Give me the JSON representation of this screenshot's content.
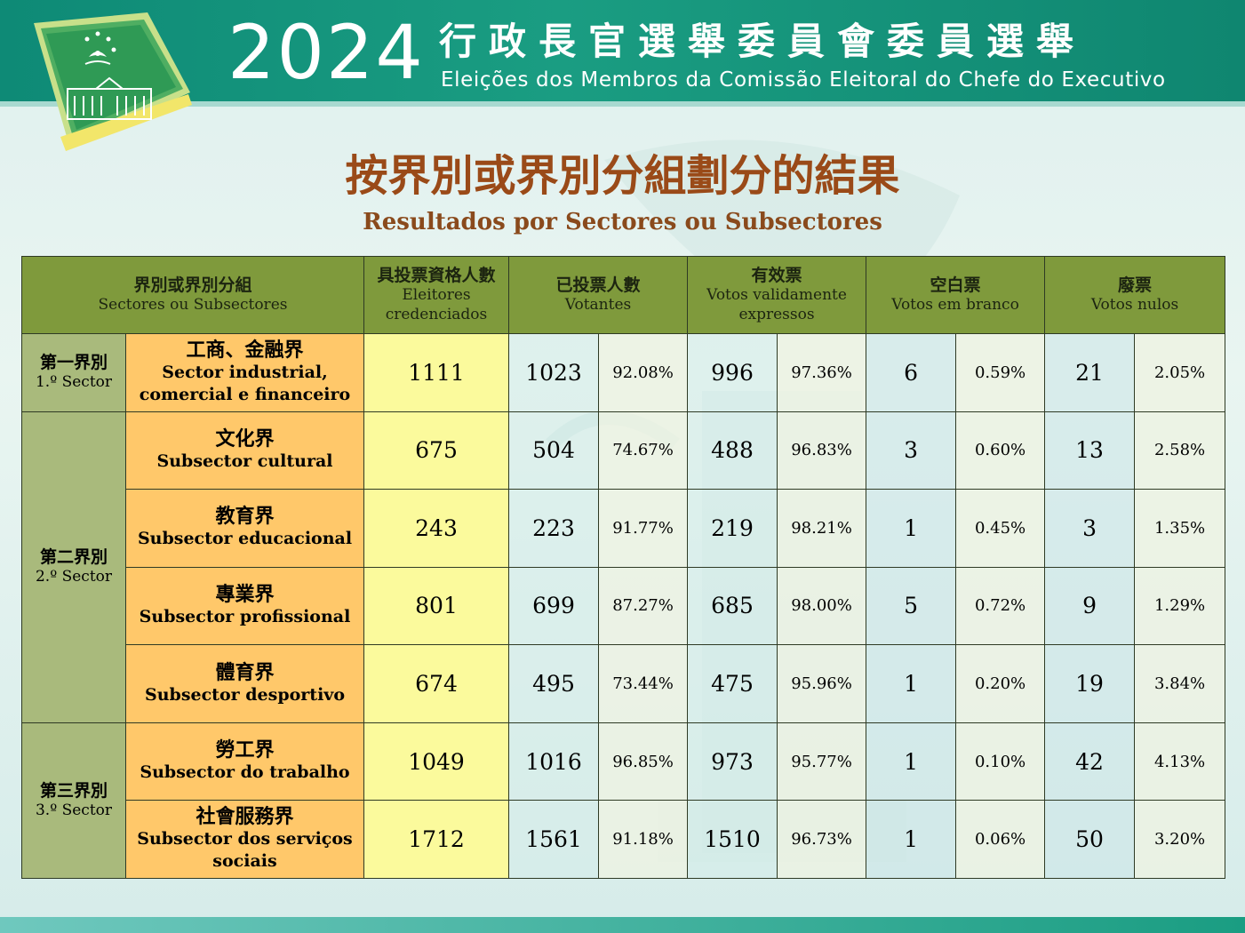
{
  "header": {
    "year": "2024",
    "title_zh": "行政長官選舉委員會委員選舉",
    "title_pt": "Eleições dos Membros da Comissão Eleitoral do Chefe do Executivo"
  },
  "page": {
    "title_zh": "按界別或界別分組劃分的結果",
    "title_pt": "Resultados por Sectores ou Subsectores"
  },
  "table": {
    "headers": {
      "sector": {
        "zh": "界別或界別分組",
        "pt": "Sectores ou Subsectores"
      },
      "eligible": {
        "zh": "具投票資格人數",
        "pt": "Eleitores credenciados"
      },
      "voters": {
        "zh": "已投票人數",
        "pt": "Votantes"
      },
      "valid": {
        "zh": "有效票",
        "pt": "Votos validamente expressos"
      },
      "blank": {
        "zh": "空白票",
        "pt": "Votos em branco"
      },
      "null": {
        "zh": "廢票",
        "pt": "Votos nulos"
      }
    },
    "sectors": [
      {
        "zh": "第一界別",
        "pt": "1.º Sector"
      },
      {
        "zh": "第二界別",
        "pt": "2.º Sector"
      },
      {
        "zh": "第三界別",
        "pt": "3.º Sector"
      }
    ],
    "rows": [
      {
        "zh": "工商、金融界",
        "pt": "Sector industrial, comercial e financeiro",
        "eligible": "1111",
        "voters": "1023",
        "voters_pct": "92.08%",
        "valid": "996",
        "valid_pct": "97.36%",
        "blank": "6",
        "blank_pct": "0.59%",
        "null": "21",
        "null_pct": "2.05%"
      },
      {
        "zh": "文化界",
        "pt": "Subsector cultural",
        "eligible": "675",
        "voters": "504",
        "voters_pct": "74.67%",
        "valid": "488",
        "valid_pct": "96.83%",
        "blank": "3",
        "blank_pct": "0.60%",
        "null": "13",
        "null_pct": "2.58%"
      },
      {
        "zh": "教育界",
        "pt": "Subsector educacional",
        "eligible": "243",
        "voters": "223",
        "voters_pct": "91.77%",
        "valid": "219",
        "valid_pct": "98.21%",
        "blank": "1",
        "blank_pct": "0.45%",
        "null": "3",
        "null_pct": "1.35%"
      },
      {
        "zh": "專業界",
        "pt": "Subsector profissional",
        "eligible": "801",
        "voters": "699",
        "voters_pct": "87.27%",
        "valid": "685",
        "valid_pct": "98.00%",
        "blank": "5",
        "blank_pct": "0.72%",
        "null": "9",
        "null_pct": "1.29%"
      },
      {
        "zh": "體育界",
        "pt": "Subsector desportivo",
        "eligible": "674",
        "voters": "495",
        "voters_pct": "73.44%",
        "valid": "475",
        "valid_pct": "95.96%",
        "blank": "1",
        "blank_pct": "0.20%",
        "null": "19",
        "null_pct": "3.84%"
      },
      {
        "zh": "勞工界",
        "pt": "Subsector do trabalho",
        "eligible": "1049",
        "voters": "1016",
        "voters_pct": "96.85%",
        "valid": "973",
        "valid_pct": "95.77%",
        "blank": "1",
        "blank_pct": "0.10%",
        "null": "42",
        "null_pct": "4.13%"
      },
      {
        "zh": "社會服務界",
        "pt": "Subsector dos serviços sociais",
        "eligible": "1712",
        "voters": "1561",
        "voters_pct": "91.18%",
        "valid": "1510",
        "valid_pct": "96.73%",
        "blank": "1",
        "blank_pct": "0.06%",
        "null": "50",
        "null_pct": "3.20%"
      }
    ]
  },
  "icons": {
    "logo": "macao-flag-building-logo"
  },
  "colors": {
    "header_teal": "#0e8a76",
    "title_brown": "#9a4a18",
    "table_header_olive": "#7f9a3c",
    "sector_green": "#a9ba7c",
    "subsector_orange": "#ffc86a",
    "eligible_yellow": "#fbfa9c"
  }
}
